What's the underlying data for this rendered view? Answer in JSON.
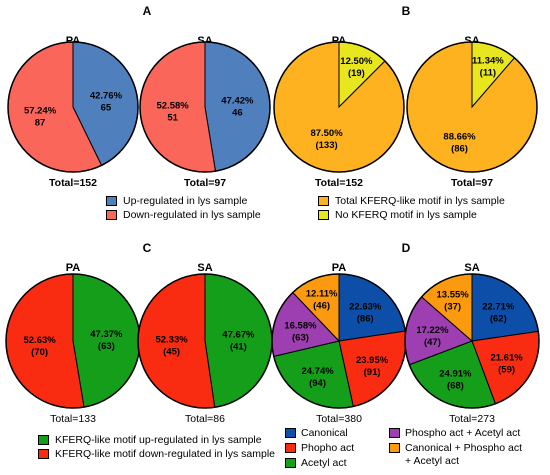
{
  "panel_labels": [
    "A",
    "B",
    "C",
    "D"
  ],
  "legends": {
    "A": [
      {
        "label": "Up-regulated in lys sample",
        "color": "#4F80BD"
      },
      {
        "label": "Down-regulated in lys sample",
        "color": "#FA665A"
      }
    ],
    "B": [
      {
        "label": "Total KFERQ-like motif in lys sample",
        "color": "#FFB21F"
      },
      {
        "label": "No KFERQ motif in lys sample",
        "color": "#E8E61E"
      }
    ],
    "C": [
      {
        "label": "KFERQ-like motif up-regulated in lys sample",
        "color": "#149E1A"
      },
      {
        "label": "KFERQ-like motif down-regulated in lys sample",
        "color": "#F92B10"
      }
    ],
    "D": [
      {
        "label": "Canonical",
        "color": "#0D4FA8"
      },
      {
        "label": "Phopho act",
        "color": "#F92B10"
      },
      {
        "label": "Acetyl act",
        "color": "#149E1A"
      },
      {
        "label": "Phospho act + Acetyl act",
        "color": "#9D3FB0"
      },
      {
        "label": "Canonical + Phospho act\n+ Acetyl act",
        "color": "#FB9A0E"
      }
    ]
  },
  "chart_data": [
    {
      "type": "pie",
      "panel": "A",
      "title": "PA",
      "total_label": "Total=152",
      "slices": [
        {
          "category": "Up-regulated in lys sample",
          "value": 65,
          "percent": "42.76%",
          "count": "65",
          "color": "#4F80BD"
        },
        {
          "category": "Down-regulated in lys sample",
          "value": 87,
          "percent": "57.24%",
          "count": "87",
          "color": "#FA665A"
        }
      ]
    },
    {
      "type": "pie",
      "panel": "A",
      "title": "SA",
      "total_label": "Total=97",
      "slices": [
        {
          "category": "Up-regulated in lys sample",
          "value": 46,
          "percent": "47.42%",
          "count": "46",
          "color": "#4F80BD"
        },
        {
          "category": "Down-regulated in lys sample",
          "value": 51,
          "percent": "52.58%",
          "count": "51",
          "color": "#FA665A"
        }
      ]
    },
    {
      "type": "pie",
      "panel": "B",
      "title": "PA",
      "total_label": "Total=152",
      "slices": [
        {
          "category": "No KFERQ motif in lys sample",
          "value": 19,
          "percent": "12.50%",
          "count": "(19)",
          "color": "#E8E61E"
        },
        {
          "category": "Total KFERQ-like motif in lys sample",
          "value": 133,
          "percent": "87.50%",
          "count": "(133)",
          "color": "#FFB21F"
        }
      ]
    },
    {
      "type": "pie",
      "panel": "B",
      "title": "SA",
      "total_label": "Total=97",
      "slices": [
        {
          "category": "No KFERQ motif in lys sample",
          "value": 11,
          "percent": "11.34%",
          "count": "(11)",
          "color": "#E8E61E"
        },
        {
          "category": "Total KFERQ-like motif in lys sample",
          "value": 86,
          "percent": "88.66%",
          "count": "(86)",
          "color": "#FFB21F"
        }
      ]
    },
    {
      "type": "pie",
      "panel": "C",
      "title": "PA",
      "total_label": "Total=133",
      "slices": [
        {
          "category": "KFERQ-like motif up-regulated in lys sample",
          "value": 63,
          "percent": "47.37%",
          "count": "(63)",
          "color": "#149E1A"
        },
        {
          "category": "KFERQ-like motif down-regulated in lys sample",
          "value": 70,
          "percent": "52.63%",
          "count": "(70)",
          "color": "#F92B10"
        }
      ]
    },
    {
      "type": "pie",
      "panel": "C",
      "title": "SA",
      "total_label": "Total=86",
      "slices": [
        {
          "category": "KFERQ-like motif up-regulated in lys sample",
          "value": 41,
          "percent": "47.67%",
          "count": "(41)",
          "color": "#149E1A"
        },
        {
          "category": "KFERQ-like motif down-regulated in lys sample",
          "value": 45,
          "percent": "52.33%",
          "count": "(45)",
          "color": "#F92B10"
        }
      ]
    },
    {
      "type": "pie",
      "panel": "D",
      "title": "PA",
      "total_label": "Total=380",
      "slices": [
        {
          "category": "Canonical",
          "value": 86,
          "percent": "22.63%",
          "count": "(86)",
          "color": "#0D4FA8"
        },
        {
          "category": "Phopho act",
          "value": 91,
          "percent": "23.95%",
          "count": "(91)",
          "color": "#F92B10"
        },
        {
          "category": "Acetyl act",
          "value": 94,
          "percent": "24.74%",
          "count": "(94)",
          "color": "#149E1A"
        },
        {
          "category": "Phospho act + Acetyl act",
          "value": 63,
          "percent": "16.58%",
          "count": "(63)",
          "color": "#9D3FB0"
        },
        {
          "category": "Canonical + Phospho act + Acetyl act",
          "value": 46,
          "percent": "12.11%",
          "count": "(46)",
          "color": "#FB9A0E"
        }
      ]
    },
    {
      "type": "pie",
      "panel": "D",
      "title": "SA",
      "total_label": "Total=273",
      "slices": [
        {
          "category": "Canonical",
          "value": 62,
          "percent": "22.71%",
          "count": "(62)",
          "color": "#0D4FA8"
        },
        {
          "category": "Phopho act",
          "value": 59,
          "percent": "21.61%",
          "count": "(59)",
          "color": "#F92B10"
        },
        {
          "category": "Acetyl act",
          "value": 68,
          "percent": "24.91%",
          "count": "(68)",
          "color": "#149E1A"
        },
        {
          "category": "Phospho act + Acetyl act",
          "value": 47,
          "percent": "17.22%",
          "count": "(47)",
          "color": "#9D3FB0"
        },
        {
          "category": "Canonical + Phospho act + Acetyl act",
          "value": 37,
          "percent": "13.55%",
          "count": "(37)",
          "color": "#FB9A0E"
        }
      ]
    }
  ]
}
